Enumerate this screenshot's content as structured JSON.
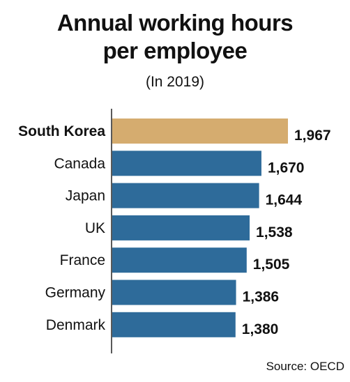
{
  "title_line1": "Annual working hours",
  "title_line2": "per employee",
  "subtitle": "(In 2019)",
  "source": "Source: OECD",
  "colors": {
    "highlight": "#d5ac6f",
    "bar": "#2e6b9a",
    "axis": "#222222",
    "text": "#111111"
  },
  "chart_data": {
    "type": "bar",
    "orientation": "horizontal",
    "title": "Annual working hours per employee",
    "subtitle": "(In 2019)",
    "categories": [
      "South Korea",
      "Canada",
      "Japan",
      "UK",
      "France",
      "Germany",
      "Denmark"
    ],
    "values": [
      1967,
      1670,
      1644,
      1538,
      1505,
      1386,
      1380
    ],
    "labels": [
      "1,967",
      "1,670",
      "1,644",
      "1,538",
      "1,505",
      "1,386",
      "1,380"
    ],
    "highlight": "South Korea",
    "xlim": [
      0,
      1967
    ],
    "grid": false,
    "legend": "none"
  }
}
